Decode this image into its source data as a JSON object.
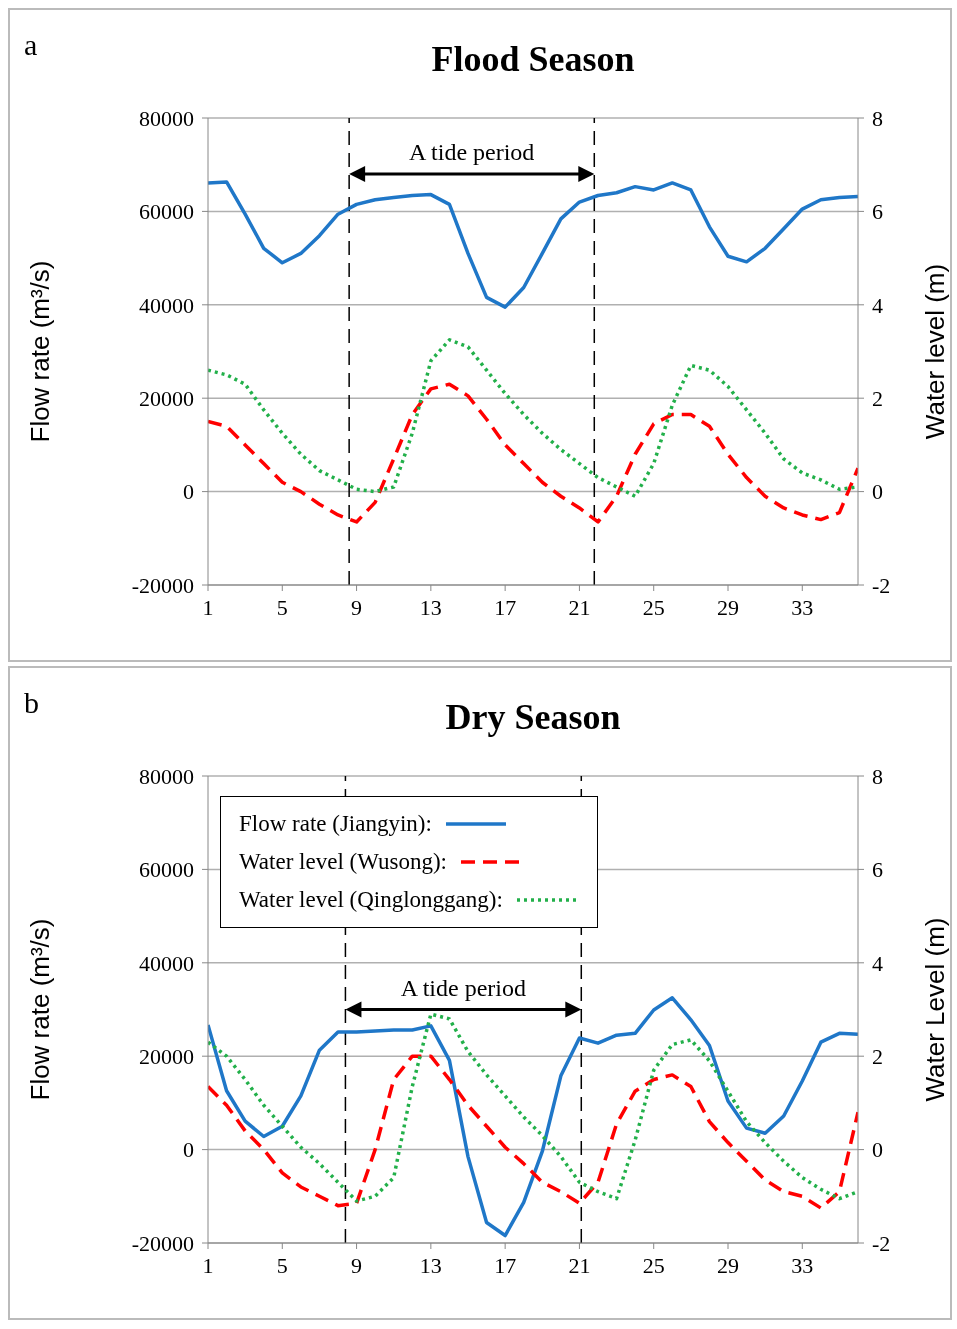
{
  "chart_data": [
    {
      "type": "line",
      "title": "Flood Season",
      "ylabel": "Flow rate  (m³/s)",
      "y2label": "Water level  (m)",
      "annotations": [
        "a",
        "A tide period"
      ],
      "x": [
        1,
        2,
        3,
        4,
        5,
        6,
        7,
        8,
        9,
        10,
        11,
        12,
        13,
        14,
        15,
        16,
        17,
        18,
        19,
        20,
        21,
        22,
        23,
        24,
        25,
        26,
        27,
        28,
        29,
        30,
        31,
        32,
        33,
        34,
        35,
        36
      ],
      "xlim": [
        1,
        36
      ],
      "xticks": [
        1,
        5,
        9,
        13,
        17,
        21,
        25,
        29,
        33
      ],
      "ylim": [
        -20000,
        80000
      ],
      "yticks": [
        -20000,
        0,
        20000,
        40000,
        60000,
        80000
      ],
      "y2lim": [
        -2,
        8
      ],
      "y2ticks": [
        -2,
        0,
        2,
        4,
        6,
        8
      ],
      "grid": "y",
      "legend": false,
      "ref_lines": [
        {
          "axis": "x",
          "value": 8.6,
          "color": "#000000",
          "line_style": "dashed"
        },
        {
          "axis": "x",
          "value": 21.8,
          "color": "#000000",
          "line_style": "dashed"
        }
      ],
      "series": [
        {
          "color": "#1f77c8",
          "line_style": "solid",
          "values": [
            66100,
            66300,
            59400,
            52100,
            49000,
            51000,
            54800,
            59400,
            61500,
            62500,
            63000,
            63400,
            63600,
            61500,
            51000,
            41600,
            39500,
            43700,
            51000,
            58400,
            62000,
            63400,
            64000,
            65300,
            64600,
            66100,
            64600,
            56700,
            50400,
            49200,
            52100,
            56300,
            60500,
            62500,
            63000,
            63200
          ]
        },
        {
          "color": "#ff0000",
          "line_style": "dashed",
          "axis": "y2",
          "values": [
            1.5,
            1.4,
            1.0,
            0.6,
            0.2,
            0,
            -0.27,
            -0.5,
            -0.65,
            -0.23,
            0.7,
            1.65,
            2.2,
            2.3,
            2.05,
            1.55,
            1.0,
            0.6,
            0.2,
            -0.1,
            -0.35,
            -0.65,
            -0.1,
            0.8,
            1.45,
            1.65,
            1.65,
            1.4,
            0.8,
            0.3,
            -0.1,
            -0.35,
            -0.5,
            -0.6,
            -0.45,
            0.5
          ]
        },
        {
          "color": "#22b04a",
          "line_style": "dotted",
          "axis": "y2",
          "values": [
            2.6,
            2.5,
            2.3,
            1.75,
            1.25,
            0.8,
            0.45,
            0.25,
            0.05,
            0,
            0.1,
            1.25,
            2.8,
            3.25,
            3.1,
            2.6,
            2.1,
            1.65,
            1.25,
            0.9,
            0.6,
            0.3,
            0.1,
            -0.1,
            0.6,
            1.85,
            2.7,
            2.6,
            2.25,
            1.75,
            1.25,
            0.7,
            0.4,
            0.25,
            0.05,
            0.1
          ]
        }
      ]
    },
    {
      "type": "line",
      "title": "Dry Season",
      "ylabel": "Flow rate  (m³/s)",
      "y2label": "Water Level  (m)",
      "annotations": [
        "b",
        "A tide period"
      ],
      "x": [
        1,
        2,
        3,
        4,
        5,
        6,
        7,
        8,
        9,
        10,
        11,
        12,
        13,
        14,
        15,
        16,
        17,
        18,
        19,
        20,
        21,
        22,
        23,
        24,
        25,
        26,
        27,
        28,
        29,
        30,
        31,
        32,
        33,
        34,
        35,
        36
      ],
      "xlim": [
        1,
        36
      ],
      "xticks": [
        1,
        5,
        9,
        13,
        17,
        21,
        25,
        29,
        33
      ],
      "ylim": [
        -20000,
        80000
      ],
      "yticks": [
        -20000,
        0,
        20000,
        40000,
        60000,
        80000
      ],
      "y2lim": [
        -2,
        8
      ],
      "y2ticks": [
        -2,
        0,
        2,
        4,
        6,
        8
      ],
      "grid": "y",
      "legend": "top left",
      "ref_lines": [
        {
          "axis": "x",
          "value": 8.4,
          "color": "#000000",
          "line_style": "dashed"
        },
        {
          "axis": "x",
          "value": 21.1,
          "color": "#000000",
          "line_style": "dashed"
        }
      ],
      "series": [
        {
          "name": "Flow rate (Jiangyin):",
          "color": "#1f77c8",
          "line_style": "solid",
          "values": [
            26700,
            12600,
            6100,
            2800,
            5000,
            11500,
            21300,
            25200,
            25200,
            25400,
            25600,
            25600,
            26500,
            19100,
            -1500,
            -15600,
            -18400,
            -11300,
            -400,
            15800,
            23900,
            22800,
            24500,
            24900,
            29900,
            32500,
            27800,
            22300,
            10400,
            4600,
            3500,
            7200,
            14700,
            23000,
            24900,
            24700
          ]
        },
        {
          "name": "Water level (Wusong):",
          "color": "#ff0000",
          "line_style": "dashed",
          "axis": "y2",
          "values": [
            1.35,
            0.95,
            0.4,
            0,
            -0.5,
            -0.8,
            -1.0,
            -1.2,
            -1.15,
            0,
            1.5,
            2.0,
            2.0,
            1.5,
            0.95,
            0.5,
            0.05,
            -0.3,
            -0.7,
            -0.9,
            -1.15,
            -0.7,
            0.55,
            1.25,
            1.5,
            1.6,
            1.35,
            0.6,
            0.15,
            -0.25,
            -0.65,
            -0.9,
            -1.0,
            -1.25,
            -0.9,
            0.8
          ]
        },
        {
          "name": "Water level (Qinglonggang):",
          "color": "#22b04a",
          "line_style": "dotted",
          "axis": "y2",
          "values": [
            2.3,
            2.0,
            1.5,
            0.95,
            0.5,
            0.05,
            -0.3,
            -0.7,
            -1.1,
            -1.0,
            -0.6,
            1.35,
            2.9,
            2.8,
            2.1,
            1.6,
            1.15,
            0.7,
            0.3,
            -0.15,
            -0.7,
            -0.9,
            -1.05,
            0.2,
            1.7,
            2.25,
            2.35,
            1.9,
            1.25,
            0.6,
            0.15,
            -0.25,
            -0.6,
            -0.85,
            -1.05,
            -0.9
          ]
        }
      ]
    }
  ]
}
